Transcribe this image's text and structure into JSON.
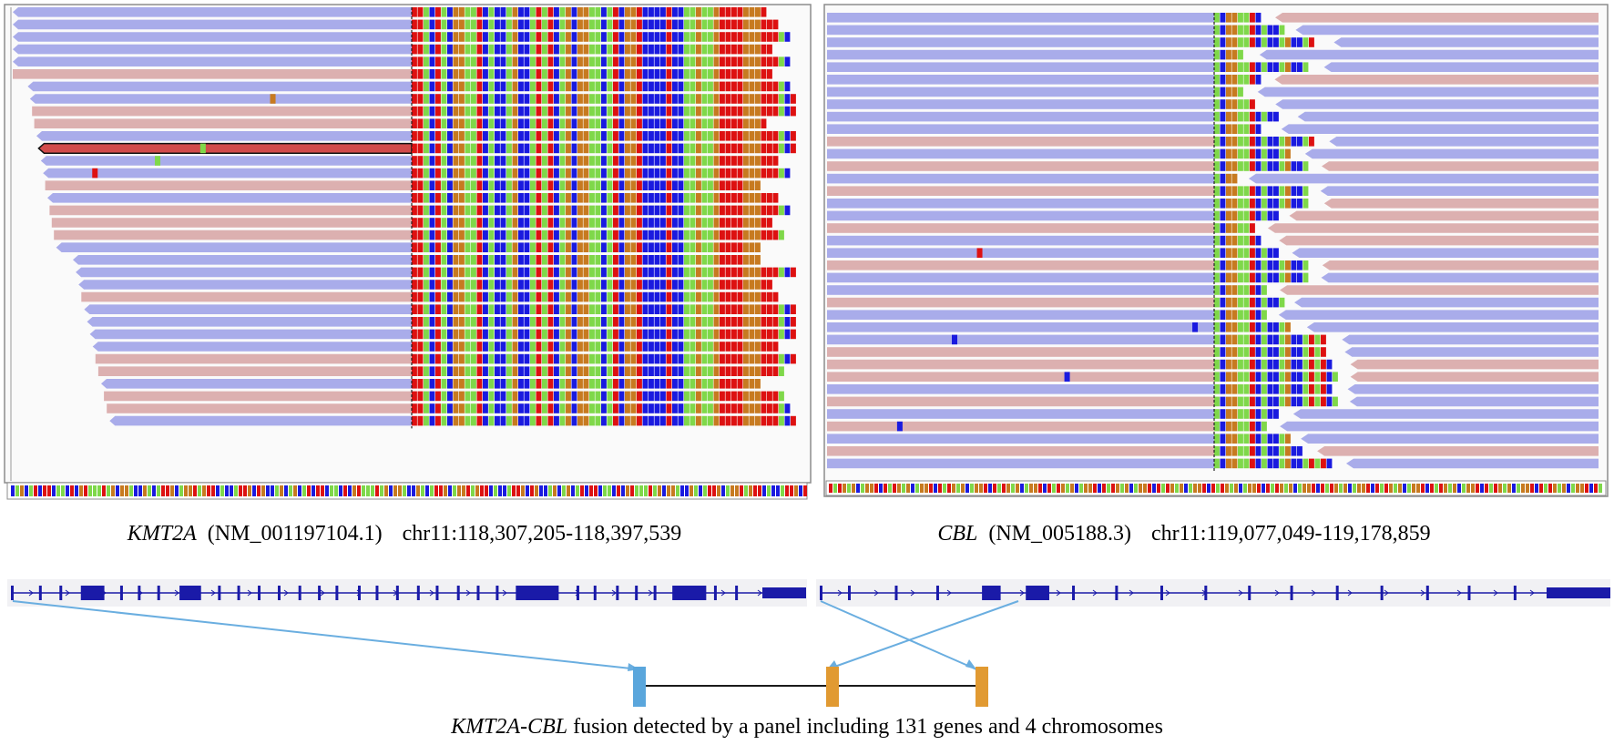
{
  "panels": [
    {
      "id": "left",
      "gene": "KMT2A",
      "transcript": "(NM_001197104.1)",
      "region": "chr11:118,307,205-118,397,539",
      "read_colors": {
        "forward": "#a9acea",
        "reverse": "#dcb0b0",
        "selected": "#d24b4b"
      },
      "softclip_side": "right",
      "exon_count": 36
    },
    {
      "id": "right",
      "gene": "CBL",
      "transcript": "(NM_005188.3)",
      "region": "chr11:119,077,049-119,178,859",
      "read_colors": {
        "forward": "#a9acea",
        "reverse": "#dcb0b0"
      },
      "softclip_side": "right",
      "exon_count": 16
    }
  ],
  "base_colors": {
    "A": "#7fd84a",
    "C": "#1a1adf",
    "G": "#c77a20",
    "T": "#dd1111"
  },
  "fusion": {
    "partner_5": "KMT2A",
    "partner_3": "CBL",
    "colors": {
      "kmt2a_exon": "#5aa6dc",
      "cbl_exon": "#e19a32",
      "connector": "#6aaee0"
    }
  },
  "bottom_caption": {
    "fusion_name": "KMT2A-CBL",
    "text": " fusion detected by a panel including 131 genes and 4 chromosomes"
  }
}
